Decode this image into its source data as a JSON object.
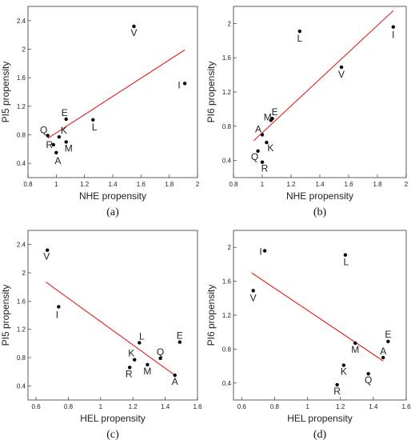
{
  "chart_data": [
    {
      "type": "scatter",
      "caption": "(a)",
      "xlabel": "NHE propensity",
      "ylabel": "PI5 propensity",
      "xlim": [
        0.8,
        2.0
      ],
      "ylim": [
        0.2,
        2.6
      ],
      "xticks": [
        "0.8",
        "1",
        "1.2",
        "1.4",
        "1.6",
        "1.8",
        "2"
      ],
      "yticks": [
        "0.4",
        "0.8",
        "1.2",
        "1.6",
        "2",
        "2.4"
      ],
      "points": [
        {
          "label": "V",
          "x": 1.55,
          "y": 2.32
        },
        {
          "label": "I",
          "x": 1.91,
          "y": 1.52
        },
        {
          "label": "L",
          "x": 1.26,
          "y": 1.01
        },
        {
          "label": "E",
          "x": 1.07,
          "y": 1.02
        },
        {
          "label": "Q",
          "x": 0.94,
          "y": 0.79
        },
        {
          "label": "K",
          "x": 1.02,
          "y": 0.77
        },
        {
          "label": "M",
          "x": 1.07,
          "y": 0.7
        },
        {
          "label": "R",
          "x": 0.98,
          "y": 0.66
        },
        {
          "label": "A",
          "x": 1.0,
          "y": 0.55
        }
      ],
      "fit_line": {
        "x": [
          0.94,
          1.91
        ],
        "y": [
          0.75,
          1.99
        ]
      }
    },
    {
      "type": "scatter",
      "caption": "(b)",
      "xlabel": "NHE propensity",
      "ylabel": "PI6 propensity",
      "xlim": [
        0.8,
        2.0
      ],
      "ylim": [
        0.2,
        2.2
      ],
      "xticks": [
        "0.8",
        "1",
        "1.2",
        "1.4",
        "1.6",
        "1.8",
        "2"
      ],
      "yticks": [
        "0.4",
        "0.8",
        "1.2",
        "1.6",
        "2"
      ],
      "points": [
        {
          "label": "I",
          "x": 1.91,
          "y": 1.96
        },
        {
          "label": "L",
          "x": 1.26,
          "y": 1.91
        },
        {
          "label": "V",
          "x": 1.55,
          "y": 1.49
        },
        {
          "label": "E",
          "x": 1.07,
          "y": 0.89
        },
        {
          "label": "M",
          "x": 1.06,
          "y": 0.87
        },
        {
          "label": "A",
          "x": 1.0,
          "y": 0.7
        },
        {
          "label": "K",
          "x": 1.03,
          "y": 0.61
        },
        {
          "label": "Q",
          "x": 0.97,
          "y": 0.51
        },
        {
          "label": "R",
          "x": 1.0,
          "y": 0.38
        }
      ],
      "fit_line": {
        "x": [
          0.94,
          1.91
        ],
        "y": [
          0.63,
          2.15
        ]
      }
    },
    {
      "type": "scatter",
      "caption": "(c)",
      "xlabel": "HEL propensity",
      "ylabel": "PI5 propensity",
      "xlim": [
        0.55,
        1.6
      ],
      "ylim": [
        0.2,
        2.6
      ],
      "xticks": [
        "0.6",
        "0.8",
        "1",
        "1.2",
        "1.4",
        "1.6"
      ],
      "yticks": [
        "0.4",
        "0.8",
        "1.2",
        "1.6",
        "2",
        "2.4"
      ],
      "points": [
        {
          "label": "V",
          "x": 0.67,
          "y": 2.32
        },
        {
          "label": "I",
          "x": 0.74,
          "y": 1.52
        },
        {
          "label": "L",
          "x": 1.24,
          "y": 1.01
        },
        {
          "label": "E",
          "x": 1.49,
          "y": 1.02
        },
        {
          "label": "Q",
          "x": 1.37,
          "y": 0.79
        },
        {
          "label": "K",
          "x": 1.21,
          "y": 0.77
        },
        {
          "label": "M",
          "x": 1.29,
          "y": 0.7
        },
        {
          "label": "R",
          "x": 1.18,
          "y": 0.66
        },
        {
          "label": "A",
          "x": 1.46,
          "y": 0.55
        }
      ],
      "fit_line": {
        "x": [
          0.66,
          1.46
        ],
        "y": [
          1.87,
          0.55
        ]
      }
    },
    {
      "type": "scatter",
      "caption": "(d)",
      "xlabel": "HEL propensity",
      "ylabel": "PI6 propensity",
      "xlim": [
        0.55,
        1.6
      ],
      "ylim": [
        0.2,
        2.2
      ],
      "xticks": [
        "0.6",
        "0.8",
        "1",
        "1.2",
        "1.4",
        "1.6"
      ],
      "yticks": [
        "0.4",
        "0.8",
        "1.2",
        "1.6",
        "2"
      ],
      "points": [
        {
          "label": "I",
          "x": 0.74,
          "y": 1.96
        },
        {
          "label": "L",
          "x": 1.23,
          "y": 1.91
        },
        {
          "label": "V",
          "x": 0.67,
          "y": 1.49
        },
        {
          "label": "E",
          "x": 1.49,
          "y": 0.89
        },
        {
          "label": "M",
          "x": 1.29,
          "y": 0.87
        },
        {
          "label": "A",
          "x": 1.46,
          "y": 0.7
        },
        {
          "label": "K",
          "x": 1.22,
          "y": 0.61
        },
        {
          "label": "Q",
          "x": 1.37,
          "y": 0.51
        },
        {
          "label": "R",
          "x": 1.18,
          "y": 0.38
        }
      ],
      "fit_line": {
        "x": [
          0.66,
          1.46
        ],
        "y": [
          1.7,
          0.66
        ]
      }
    }
  ]
}
